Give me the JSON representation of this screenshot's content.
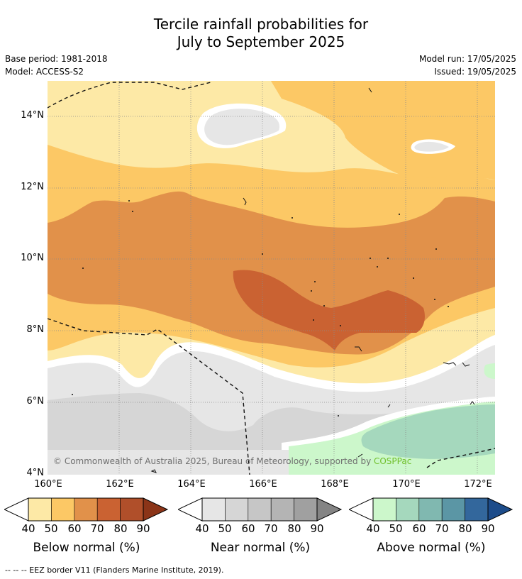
{
  "title": {
    "line1": "Tercile rainfall probabilities for",
    "line2": "July to September 2025"
  },
  "meta": {
    "base_period": "Base period: 1981-2018",
    "model": "Model: ACCESS-S2",
    "model_run": "Model run: 17/05/2025",
    "issued": "Issued: 19/05/2025"
  },
  "map": {
    "lat_labels": [
      "14°N",
      "12°N",
      "10°N",
      "8°N",
      "6°N",
      "4°N"
    ],
    "lon_labels": [
      "160°E",
      "162°E",
      "164°E",
      "166°E",
      "168°E",
      "170°E",
      "172°E"
    ],
    "copyright_text": "© Commonwealth of Australia 2025, Bureau of Meteorology, supported by ",
    "copyright_link": "COSPPac"
  },
  "legends": [
    {
      "title": "Below normal (%)",
      "ticks": [
        "40",
        "50",
        "60",
        "70",
        "80",
        "90"
      ],
      "colors": [
        "#fde9a6",
        "#fcc865",
        "#e1914a",
        "#ca6232",
        "#b04f2a",
        "#8b3418"
      ]
    },
    {
      "title": "Near normal (%)",
      "ticks": [
        "40",
        "50",
        "60",
        "70",
        "80",
        "90"
      ],
      "colors": [
        "#e6e6e6",
        "#d6d6d6",
        "#c6c6c6",
        "#b4b4b4",
        "#a0a0a0",
        "#848484"
      ]
    },
    {
      "title": "Above normal (%)",
      "ticks": [
        "40",
        "50",
        "60",
        "70",
        "80",
        "90"
      ],
      "colors": [
        "#ccf7cb",
        "#a5d8bd",
        "#80b8b0",
        "#5b96a5",
        "#33679c",
        "#1d4c8a"
      ]
    }
  ],
  "footnote": "--  --  -- EEZ border V11 (Flanders Marine Institute, 2019)."
}
